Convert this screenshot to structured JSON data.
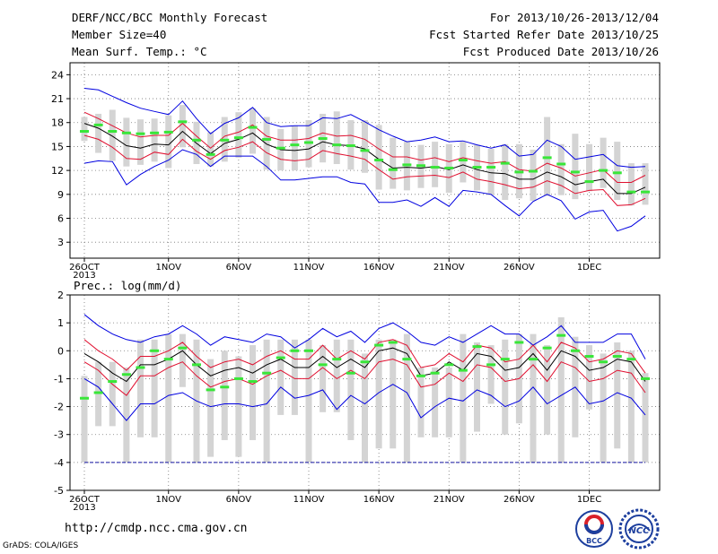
{
  "header": {
    "title": "DERF/NCC/BCC Monthly Forecast",
    "member_size": "Member Size=40",
    "variable": "Mean Surf. Temp.: °C",
    "forecast_range": "For 2013/10/26-2013/12/04",
    "start_date": "Fcst Started Refer Date 2013/10/25",
    "produced_date": "Fcst Produced Date 2013/10/26"
  },
  "footer": {
    "url": "http://cmdp.ncc.cma.gov.cn",
    "credit": "GrADS: COLA/IGES",
    "logo_bcc_text": "BCC",
    "logo_ncc_text": "NCC"
  },
  "colors": {
    "envelope": "#0000e0",
    "spread": "#e01030",
    "mean": "#000000",
    "box": "#d4d4d4",
    "dash": "#39e639",
    "frame": "#000000",
    "grid": "#777777"
  },
  "chart_data": [
    {
      "type": "line",
      "title": "Mean Surf. Temp.: °C",
      "x_tick_labels": [
        "26OCT\n2013",
        "1NOV",
        "6NOV",
        "11NOV",
        "16NOV",
        "21NOV",
        "26NOV",
        "1DEC"
      ],
      "x_tick_days": [
        0,
        6,
        11,
        16,
        21,
        26,
        31,
        36
      ],
      "ylim": [
        1,
        25.5
      ],
      "y_ticks": [
        3,
        6,
        9,
        12,
        15,
        18,
        21,
        24
      ],
      "grid": true,
      "series": [
        {
          "values": [
            22.3,
            22.1,
            21.3,
            20.5,
            19.8,
            19.4,
            19.0,
            20.7,
            18.5,
            16.6,
            17.9,
            18.6,
            19.9,
            18.0,
            17.5,
            17.6,
            17.6,
            18.6,
            18.5,
            19.0,
            18.1,
            17.1,
            16.3,
            15.6,
            15.8,
            16.2,
            15.6,
            15.7,
            15.2,
            14.8,
            15.2,
            13.8,
            14.0,
            15.8,
            15.0,
            13.4,
            13.7,
            14.0,
            12.6,
            12.4,
            12.5
          ]
        },
        {
          "values": [
            19.3,
            18.5,
            17.6,
            16.7,
            16.2,
            16.4,
            16.4,
            17.9,
            16.3,
            14.8,
            16.3,
            16.8,
            17.7,
            16.3,
            15.8,
            15.8,
            16.0,
            16.7,
            16.3,
            16.4,
            15.9,
            14.7,
            13.7,
            13.7,
            13.3,
            13.6,
            13.1,
            13.6,
            13.2,
            12.9,
            13.1,
            12.1,
            11.9,
            12.9,
            12.3,
            11.3,
            11.7,
            12.1,
            10.5,
            10.5,
            11.4
          ]
        },
        {
          "values": [
            17.9,
            17.3,
            16.3,
            15.1,
            14.8,
            15.3,
            15.2,
            16.9,
            15.4,
            14.1,
            15.4,
            15.9,
            16.7,
            15.3,
            14.6,
            14.5,
            14.7,
            15.6,
            15.2,
            15.1,
            14.7,
            13.4,
            12.3,
            12.4,
            12.3,
            12.5,
            12.1,
            12.7,
            12.1,
            11.7,
            11.6,
            10.9,
            10.9,
            11.8,
            11.2,
            10.2,
            10.6,
            10.9,
            9.1,
            9.1,
            9.9
          ]
        },
        {
          "values": [
            16.4,
            15.9,
            14.9,
            13.5,
            13.4,
            14.3,
            14.0,
            15.9,
            14.4,
            13.4,
            14.5,
            14.9,
            15.6,
            14.2,
            13.4,
            13.2,
            13.4,
            14.5,
            14.1,
            13.8,
            13.4,
            12.1,
            10.9,
            11.2,
            11.3,
            11.4,
            11.1,
            11.8,
            10.9,
            10.6,
            10.2,
            9.7,
            9.9,
            10.7,
            10.1,
            9.1,
            9.5,
            9.6,
            7.6,
            7.7,
            8.5
          ]
        },
        {
          "values": [
            12.9,
            13.2,
            13.1,
            10.2,
            11.5,
            12.5,
            13.3,
            14.6,
            14.0,
            12.5,
            13.8,
            13.8,
            13.8,
            12.5,
            10.8,
            10.8,
            11.0,
            11.2,
            11.2,
            10.5,
            10.3,
            8.0,
            8.0,
            8.3,
            7.5,
            8.6,
            7.5,
            9.5,
            9.3,
            9.0,
            7.6,
            6.3,
            8.1,
            9.0,
            8.2,
            5.9,
            6.8,
            7.0,
            4.4,
            5.0,
            6.3
          ]
        },
        {
          "values": [
            16.9,
            17.7,
            16.9,
            16.7,
            16.6,
            16.7,
            16.8,
            18.1,
            15.8,
            14.0,
            15.8,
            16.1,
            17.4,
            15.9,
            14.8,
            15.2,
            15.5,
            16.0,
            15.2,
            15.1,
            14.5,
            13.3,
            12.1,
            12.7,
            12.6,
            12.4,
            12.3,
            13.3,
            12.4,
            12.4,
            12.9,
            11.8,
            11.9,
            13.6,
            12.8,
            11.8,
            10.6,
            12.0,
            11.7,
            9.3,
            9.3
          ]
        }
      ],
      "box_ranges": [
        [
          15.7,
          18.7
        ],
        [
          14.2,
          19.1
        ],
        [
          13.2,
          19.6
        ],
        [
          12.5,
          18.6
        ],
        [
          12.7,
          18.4
        ],
        [
          13.1,
          18.5
        ],
        [
          12.3,
          18.9
        ],
        [
          14.9,
          20.2
        ],
        [
          12.8,
          18.1
        ],
        [
          12.5,
          16.8
        ],
        [
          13.1,
          18.7
        ],
        [
          13.6,
          19.3
        ],
        [
          14.1,
          19.8
        ],
        [
          12.1,
          18.7
        ],
        [
          12.0,
          17.2
        ],
        [
          12.0,
          17.6
        ],
        [
          12.4,
          18.3
        ],
        [
          13.0,
          19.1
        ],
        [
          12.8,
          19.4
        ],
        [
          12.1,
          18.3
        ],
        [
          11.7,
          18.3
        ],
        [
          9.6,
          17.7
        ],
        [
          9.7,
          16.1
        ],
        [
          9.5,
          15.6
        ],
        [
          9.8,
          15.2
        ],
        [
          9.9,
          15.6
        ],
        [
          9.2,
          15.3
        ],
        [
          10.5,
          15.6
        ],
        [
          9.5,
          15.2
        ],
        [
          8.9,
          14.7
        ],
        [
          8.3,
          15.3
        ],
        [
          8.5,
          15.3
        ],
        [
          8.2,
          14.6
        ],
        [
          8.8,
          18.7
        ],
        [
          8.9,
          15.3
        ],
        [
          8.4,
          16.6
        ],
        [
          9.4,
          15.3
        ],
        [
          9.8,
          16.1
        ],
        [
          8.3,
          15.6
        ],
        [
          7.6,
          12.9
        ],
        [
          7.7,
          12.9
        ]
      ]
    },
    {
      "type": "line",
      "title": "Prec.: log(mm/d)",
      "x_tick_labels": [
        "26OCT\n2013",
        "1NOV",
        "6NOV",
        "11NOV",
        "16NOV",
        "21NOV",
        "26NOV",
        "1DEC"
      ],
      "x_tick_days": [
        0,
        6,
        11,
        16,
        21,
        26,
        31,
        36
      ],
      "ylim": [
        -5,
        2
      ],
      "y_ticks": [
        -5,
        -4,
        -3,
        -2,
        -1,
        0,
        1,
        2
      ],
      "grid": true,
      "series": [
        {
          "values": [
            1.3,
            0.9,
            0.6,
            0.4,
            0.3,
            0.5,
            0.6,
            0.9,
            0.6,
            0.2,
            0.5,
            0.4,
            0.3,
            0.6,
            0.5,
            0.1,
            0.4,
            0.8,
            0.5,
            0.7,
            0.3,
            0.8,
            1.0,
            0.7,
            0.3,
            0.2,
            0.5,
            0.3,
            0.6,
            0.9,
            0.6,
            0.6,
            0.2,
            0.5,
            0.9,
            0.3,
            0.3,
            0.3,
            0.6,
            0.6,
            -0.3
          ]
        },
        {
          "values": [
            0.4,
            0.0,
            -0.3,
            -0.7,
            -0.2,
            -0.2,
            0.0,
            0.3,
            -0.2,
            -0.6,
            -0.4,
            -0.3,
            -0.5,
            -0.2,
            0.0,
            -0.3,
            -0.3,
            0.2,
            -0.3,
            0.0,
            -0.3,
            0.3,
            0.4,
            0.2,
            -0.6,
            -0.5,
            -0.1,
            -0.4,
            0.2,
            0.1,
            -0.4,
            -0.3,
            0.2,
            -0.4,
            0.3,
            0.1,
            -0.4,
            -0.3,
            0.0,
            -0.1,
            -0.8
          ]
        },
        {
          "values": [
            -0.1,
            -0.4,
            -0.8,
            -1.1,
            -0.5,
            -0.5,
            -0.3,
            0.0,
            -0.5,
            -0.9,
            -0.7,
            -0.6,
            -0.8,
            -0.5,
            -0.3,
            -0.6,
            -0.6,
            -0.2,
            -0.6,
            -0.3,
            -0.6,
            0.0,
            0.1,
            -0.1,
            -0.9,
            -0.8,
            -0.4,
            -0.7,
            -0.1,
            -0.2,
            -0.7,
            -0.6,
            -0.1,
            -0.7,
            0.0,
            -0.2,
            -0.7,
            -0.6,
            -0.3,
            -0.4,
            -1.1
          ]
        },
        {
          "values": [
            -0.4,
            -0.7,
            -1.2,
            -1.6,
            -0.9,
            -0.9,
            -0.6,
            -0.4,
            -0.9,
            -1.3,
            -1.1,
            -1.0,
            -1.2,
            -0.9,
            -0.7,
            -1.0,
            -1.0,
            -0.6,
            -1.0,
            -0.7,
            -1.0,
            -0.4,
            -0.3,
            -0.5,
            -1.3,
            -1.2,
            -0.8,
            -1.1,
            -0.5,
            -0.6,
            -1.1,
            -1.0,
            -0.5,
            -1.1,
            -0.4,
            -0.6,
            -1.1,
            -1.0,
            -0.7,
            -0.8,
            -1.5
          ]
        },
        {
          "values": [
            -1.0,
            -1.3,
            -1.9,
            -2.5,
            -1.9,
            -1.9,
            -1.6,
            -1.5,
            -1.8,
            -2.0,
            -1.9,
            -1.9,
            -2.0,
            -1.9,
            -1.3,
            -1.7,
            -1.6,
            -1.4,
            -2.1,
            -1.6,
            -1.9,
            -1.5,
            -1.2,
            -1.5,
            -2.4,
            -2.0,
            -1.7,
            -1.8,
            -1.4,
            -1.6,
            -2.0,
            -1.8,
            -1.3,
            -1.9,
            -1.6,
            -1.3,
            -1.9,
            -1.8,
            -1.5,
            -1.7,
            -2.3
          ]
        },
        {
          "values": [
            -1.7,
            -1.5,
            -1.1,
            -0.85,
            -0.6,
            0.0,
            -0.3,
            0.1,
            -0.5,
            -1.4,
            -1.3,
            -1.0,
            -1.1,
            -0.8,
            -0.25,
            0.0,
            0.0,
            -0.5,
            -0.3,
            -0.8,
            -0.4,
            0.2,
            0.3,
            -0.3,
            -0.9,
            -0.8,
            -0.5,
            -0.7,
            0.15,
            -0.5,
            -0.3,
            0.3,
            -0.3,
            0.1,
            0.55,
            0.0,
            -0.2,
            -0.4,
            -0.2,
            -0.3,
            -1.0
          ]
        }
      ],
      "box_ranges": [
        [
          -4.0,
          -0.9
        ],
        [
          -2.7,
          -0.4
        ],
        [
          -2.7,
          -0.4
        ],
        [
          -4.0,
          -0.6
        ],
        [
          -3.1,
          0.4
        ],
        [
          -3.1,
          0.4
        ],
        [
          -4.0,
          0.6
        ],
        [
          -1.3,
          0.6
        ],
        [
          -4.0,
          0.4
        ],
        [
          -3.8,
          -0.3
        ],
        [
          -3.2,
          0.0
        ],
        [
          -3.8,
          -0.2
        ],
        [
          -3.2,
          0.2
        ],
        [
          -4.0,
          0.4
        ],
        [
          -2.3,
          0.4
        ],
        [
          -2.3,
          0.4
        ],
        [
          -4.0,
          0.4
        ],
        [
          -2.2,
          0.2
        ],
        [
          -2.2,
          0.4
        ],
        [
          -3.2,
          0.4
        ],
        [
          -4.0,
          -0.1
        ],
        [
          -3.5,
          0.4
        ],
        [
          -3.5,
          0.4
        ],
        [
          -4.0,
          0.6
        ],
        [
          -3.1,
          -0.6
        ],
        [
          -3.1,
          -0.6
        ],
        [
          -3.1,
          -0.6
        ],
        [
          -4.0,
          0.6
        ],
        [
          -2.9,
          0.3
        ],
        [
          -1.9,
          0.2
        ],
        [
          -3.0,
          0.4
        ],
        [
          -2.6,
          0.6
        ],
        [
          -4.0,
          0.6
        ],
        [
          -3.0,
          0.2
        ],
        [
          -4.0,
          1.2
        ],
        [
          -3.1,
          0.5
        ],
        [
          -2.1,
          0.2
        ],
        [
          -4.0,
          -0.1
        ],
        [
          -3.5,
          0.3
        ],
        [
          -4.0,
          0.0
        ],
        [
          -4.0,
          -0.8
        ]
      ],
      "reference_line": -4.0
    }
  ]
}
